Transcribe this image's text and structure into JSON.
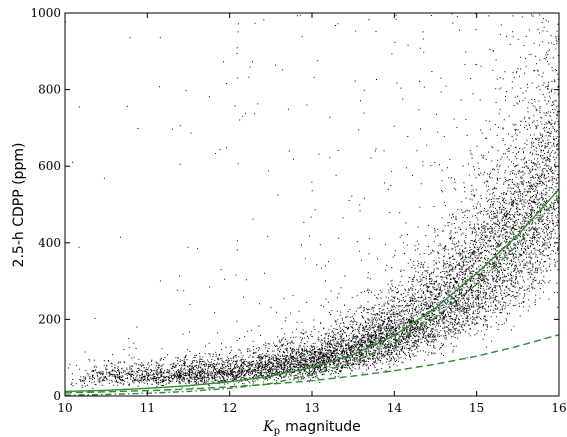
{
  "chart_data": {
    "type": "scatter",
    "title": "",
    "xlabel": {
      "symbol": "K",
      "subscript": "p",
      "text": "magnitude"
    },
    "ylabel": "2.5-h CDPP (ppm)",
    "xlim": [
      10,
      16
    ],
    "ylim": [
      0,
      1000
    ],
    "x_ticks": [
      10,
      11,
      12,
      13,
      14,
      15,
      16
    ],
    "y_ticks": [
      0,
      200,
      400,
      600,
      800,
      1000
    ],
    "grid": false,
    "legend": "none",
    "scatter": {
      "color": "#000000",
      "approx_point_count": 9000,
      "baseline_trend": [
        {
          "x": 10,
          "y": 50
        },
        {
          "x": 11,
          "y": 55
        },
        {
          "x": 12,
          "y": 65
        },
        {
          "x": 13,
          "y": 95
        },
        {
          "x": 14,
          "y": 170
        },
        {
          "x": 15,
          "y": 330
        },
        {
          "x": 15.5,
          "y": 450
        },
        {
          "x": 16,
          "y": 620
        }
      ]
    },
    "series": [
      {
        "style": "solid",
        "color": "#2e8b2e",
        "x": [
          10,
          10.5,
          11,
          11.5,
          12,
          12.5,
          13,
          13.5,
          14,
          14.5,
          15,
          15.5,
          16
        ],
        "y": [
          12,
          15,
          20,
          27,
          37,
          52,
          75,
          108,
          158,
          230,
          320,
          420,
          540
        ]
      },
      {
        "style": "dashdot",
        "color": "#2e8b2e",
        "x": [
          10,
          10.5,
          11,
          11.5,
          12,
          12.5,
          13,
          13.5,
          14,
          14.5,
          15,
          15.5,
          16
        ],
        "y": [
          2,
          4,
          7,
          12,
          20,
          33,
          55,
          88,
          138,
          205,
          292,
          395,
          520
        ]
      },
      {
        "style": "dashed",
        "color": "#2e8b2e",
        "x": [
          10,
          10.5,
          11,
          11.5,
          12,
          12.5,
          13,
          13.5,
          14,
          14.5,
          15,
          15.5,
          16
        ],
        "y": [
          8,
          11,
          14,
          18,
          24,
          31,
          40,
          52,
          66,
          83,
          104,
          130,
          160
        ]
      }
    ]
  }
}
